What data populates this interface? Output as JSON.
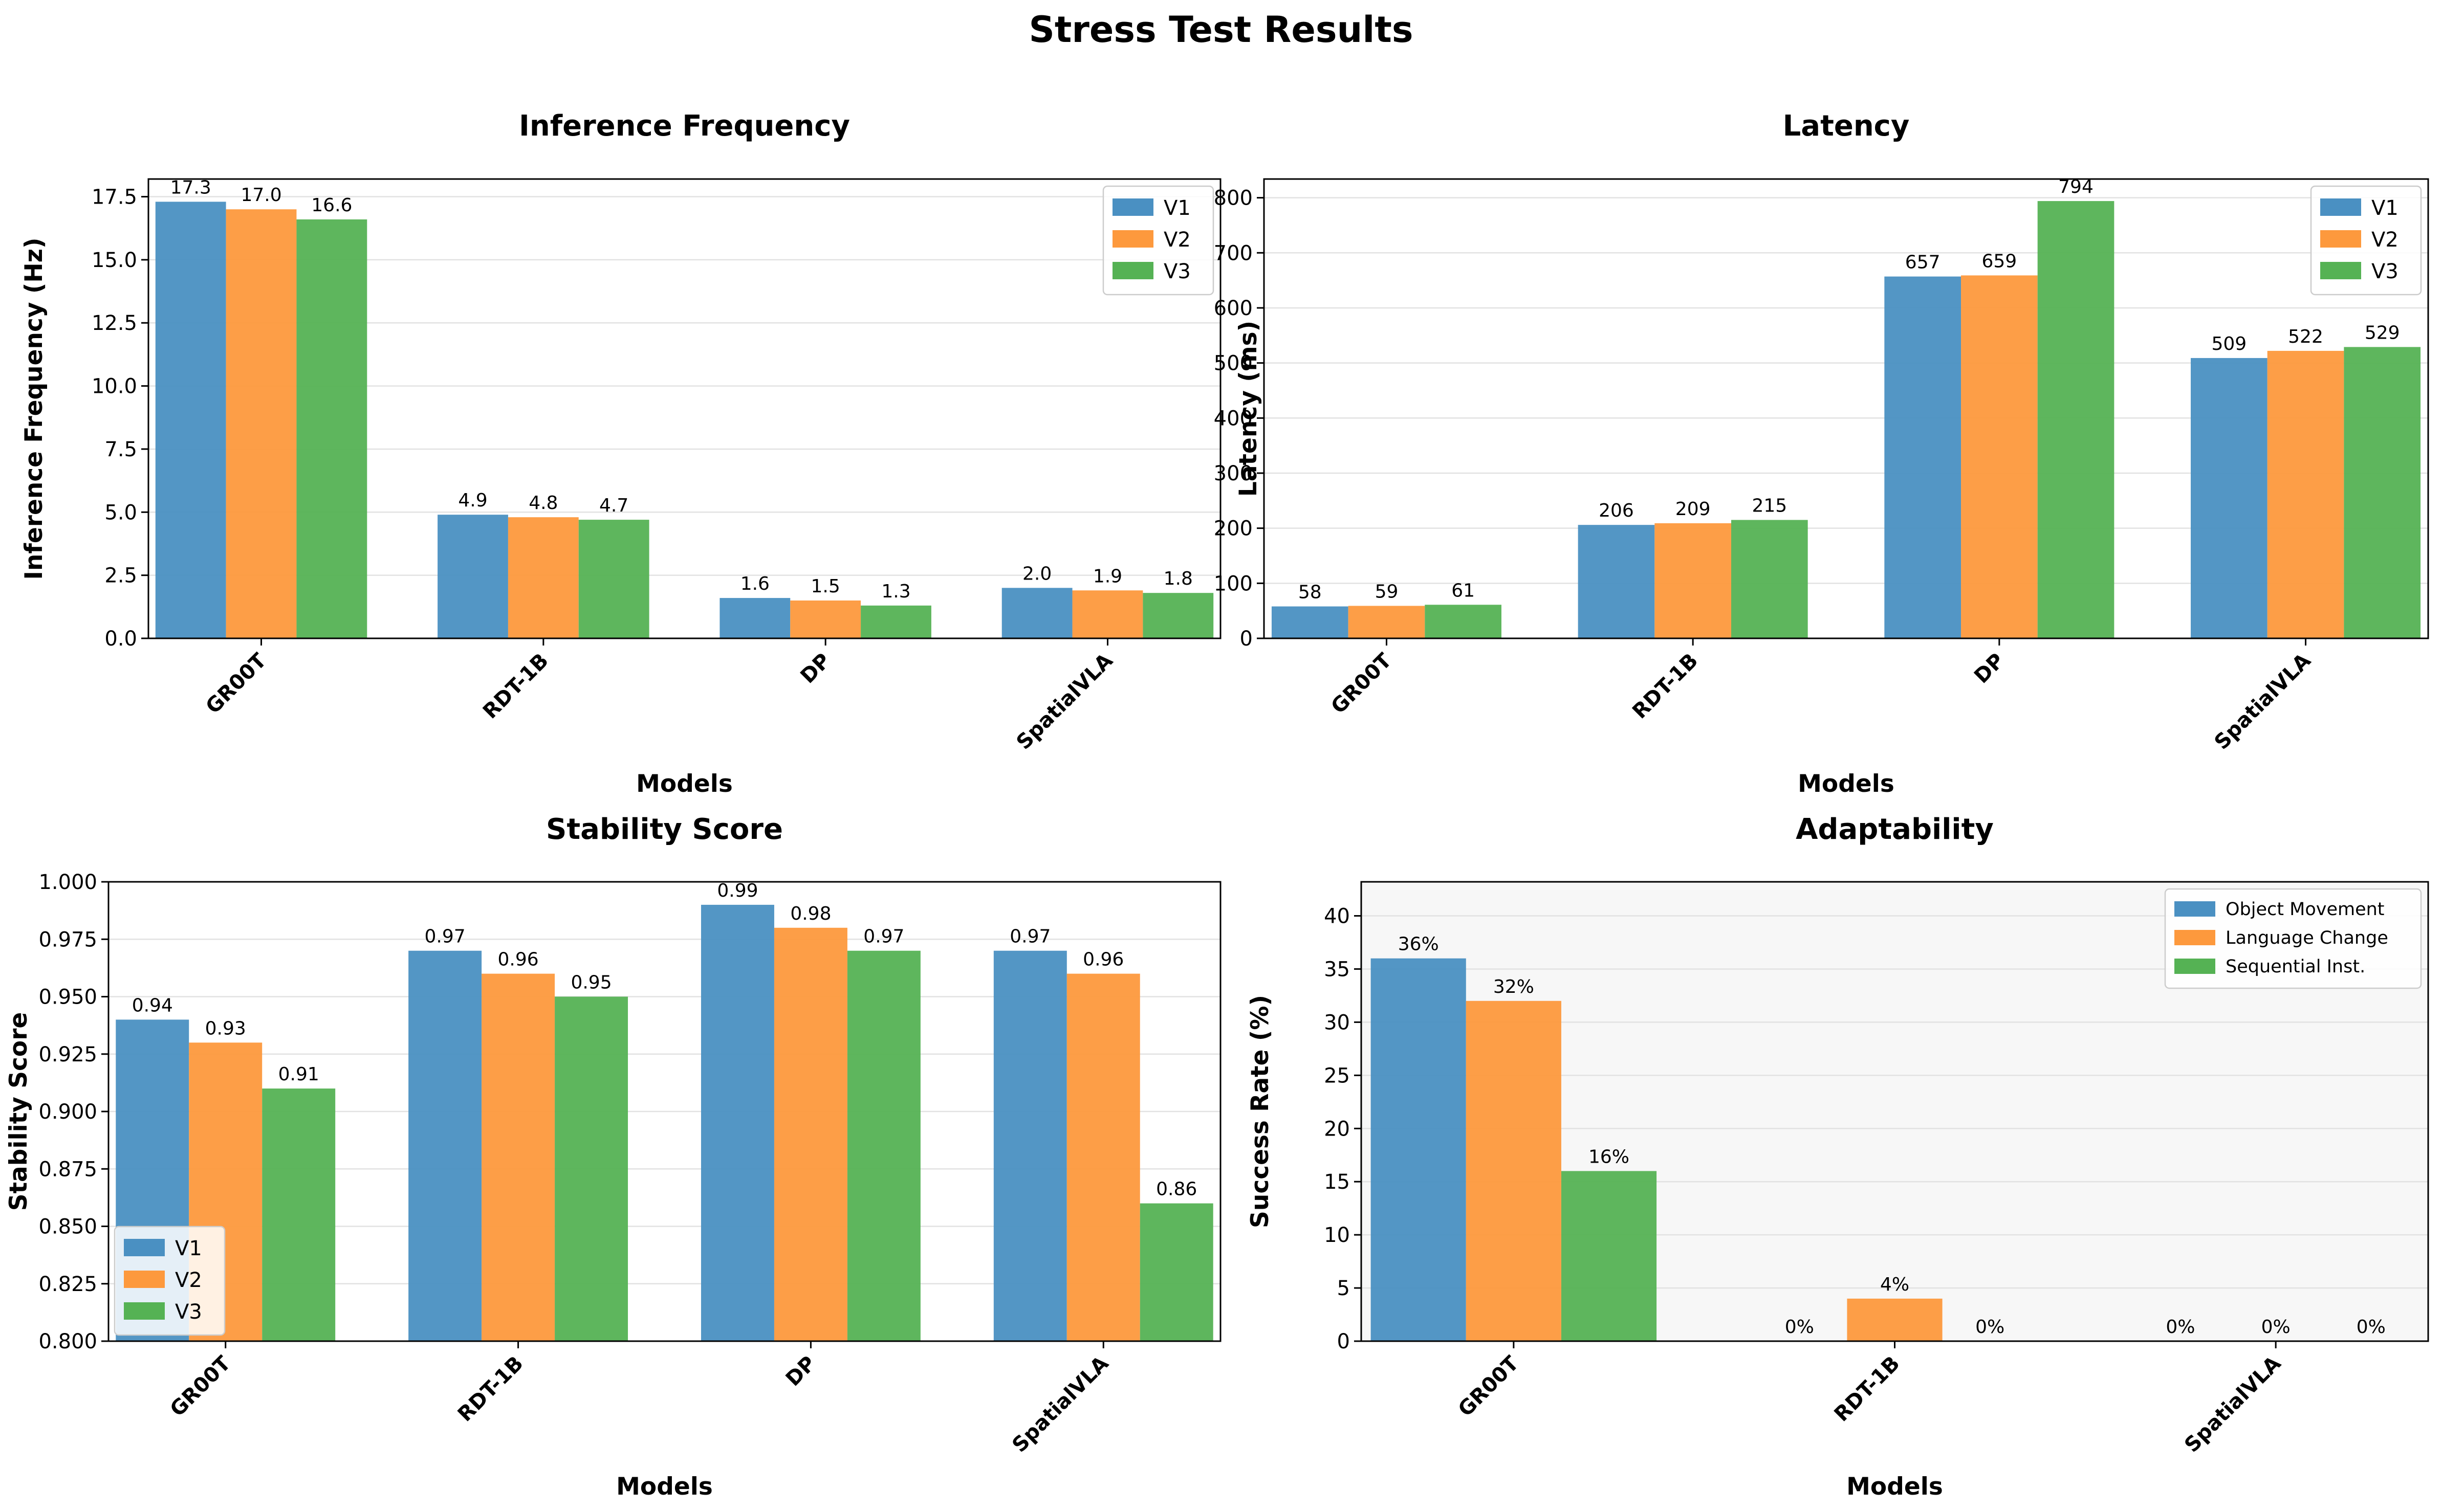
{
  "figure_title": "Stress Test Results",
  "colors": {
    "V1": "#4a90c2",
    "V2": "#fd993d",
    "V3": "#55b254"
  },
  "chart_data": [
    {
      "type": "bar",
      "title": "Inference Frequency",
      "xlabel": "Models",
      "ylabel": "Inference Frequency (Hz)",
      "categories": [
        "GR00T",
        "RDT-1B",
        "DP",
        "SpatialVLA"
      ],
      "ylim": [
        0,
        18.2
      ],
      "yticks": [
        "0.0",
        "2.5",
        "5.0",
        "7.5",
        "10.0",
        "12.5",
        "15.0",
        "17.5"
      ],
      "ytick_values": [
        0,
        2.5,
        5,
        7.5,
        10,
        12.5,
        15,
        17.5
      ],
      "legend": "top-right",
      "grid": true,
      "series": [
        {
          "name": "V1",
          "values": [
            17.3,
            4.9,
            1.6,
            2.0
          ],
          "labels": [
            "17.3",
            "4.9",
            "1.6",
            "2.0"
          ]
        },
        {
          "name": "V2",
          "values": [
            17.0,
            4.8,
            1.5,
            1.9
          ],
          "labels": [
            "17.0",
            "4.8",
            "1.5",
            "1.9"
          ]
        },
        {
          "name": "V3",
          "values": [
            16.6,
            4.7,
            1.3,
            1.8
          ],
          "labels": [
            "16.6",
            "4.7",
            "1.3",
            "1.8"
          ]
        }
      ]
    },
    {
      "type": "bar",
      "title": "Latency",
      "xlabel": "Models",
      "ylabel": "Latency (ms)",
      "categories": [
        "GR00T",
        "RDT-1B",
        "DP",
        "SpatialVLA"
      ],
      "ylim": [
        0,
        834
      ],
      "yticks": [
        "0",
        "100",
        "200",
        "300",
        "400",
        "500",
        "600",
        "700",
        "800"
      ],
      "ytick_values": [
        0,
        100,
        200,
        300,
        400,
        500,
        600,
        700,
        800
      ],
      "legend": "top-right",
      "grid": true,
      "series": [
        {
          "name": "V1",
          "values": [
            58,
            206,
            657,
            509
          ],
          "labels": [
            "58",
            "206",
            "657",
            "509"
          ]
        },
        {
          "name": "V2",
          "values": [
            59,
            209,
            659,
            522
          ],
          "labels": [
            "59",
            "209",
            "659",
            "522"
          ]
        },
        {
          "name": "V3",
          "values": [
            61,
            215,
            794,
            529
          ],
          "labels": [
            "61",
            "215",
            "794",
            "529"
          ]
        }
      ]
    },
    {
      "type": "bar",
      "title": "Stability Score",
      "xlabel": "Models",
      "ylabel": "Stability Score",
      "categories": [
        "GR00T",
        "RDT-1B",
        "DP",
        "SpatialVLA"
      ],
      "ylim": [
        0.8,
        1.0
      ],
      "yticks": [
        "0.800",
        "0.825",
        "0.850",
        "0.875",
        "0.900",
        "0.925",
        "0.950",
        "0.975",
        "1.000"
      ],
      "ytick_values": [
        0.8,
        0.825,
        0.85,
        0.875,
        0.9,
        0.925,
        0.95,
        0.975,
        1.0
      ],
      "legend": "bottom-left",
      "grid": true,
      "series": [
        {
          "name": "V1",
          "values": [
            0.94,
            0.97,
            0.99,
            0.97
          ],
          "labels": [
            "0.94",
            "0.97",
            "0.99",
            "0.97"
          ]
        },
        {
          "name": "V2",
          "values": [
            0.93,
            0.96,
            0.98,
            0.96
          ],
          "labels": [
            "0.93",
            "0.96",
            "0.98",
            "0.96"
          ]
        },
        {
          "name": "V3",
          "values": [
            0.91,
            0.95,
            0.97,
            0.86
          ],
          "labels": [
            "0.91",
            "0.95",
            "0.97",
            "0.86"
          ]
        }
      ]
    },
    {
      "type": "bar",
      "title": "Adaptability",
      "xlabel": "Models",
      "ylabel": "Success Rate (%)",
      "categories": [
        "GR00T",
        "RDT-1B",
        "SpatialVLA"
      ],
      "ylim": [
        0,
        43.2
      ],
      "yticks": [
        "0",
        "5",
        "10",
        "15",
        "20",
        "25",
        "30",
        "35",
        "40"
      ],
      "ytick_values": [
        0,
        5,
        10,
        15,
        20,
        25,
        30,
        35,
        40
      ],
      "legend": "top-right",
      "grid": true,
      "series": [
        {
          "name": "Object Movement",
          "values": [
            36,
            0,
            0
          ],
          "labels": [
            "36%",
            "0%",
            "0%"
          ]
        },
        {
          "name": "Language Change",
          "values": [
            32,
            4,
            0
          ],
          "labels": [
            "32%",
            "4%",
            "0%"
          ]
        },
        {
          "name": "Sequential Inst.",
          "values": [
            16,
            0,
            0
          ],
          "labels": [
            "16%",
            "0%",
            "0%"
          ]
        }
      ]
    }
  ]
}
